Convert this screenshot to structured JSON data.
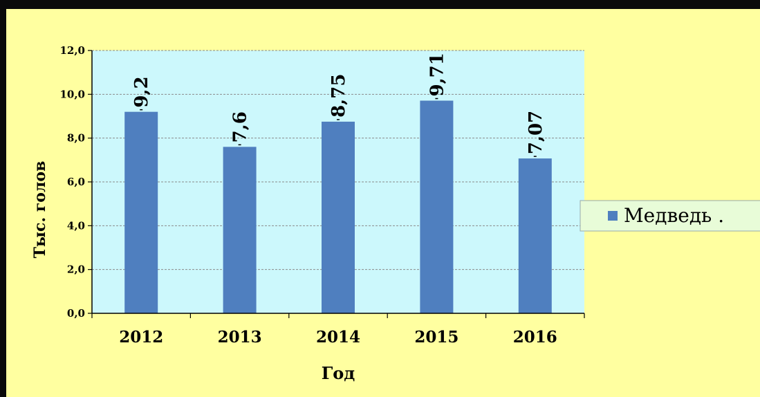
{
  "chart_data": {
    "type": "bar",
    "categories": [
      "2012",
      "2013",
      "2014",
      "2015",
      "2016"
    ],
    "series": [
      {
        "name": "Медведь .",
        "values": [
          9.2,
          7.6,
          8.75,
          9.71,
          7.07
        ],
        "color": "#4f7fbf"
      }
    ],
    "data_labels": [
      "9,2",
      "7,6",
      "8,75",
      "9,71",
      "7,07"
    ],
    "ylim": [
      0,
      12
    ],
    "yticks": [
      0,
      2,
      4,
      6,
      8,
      10,
      12
    ],
    "ytick_labels": [
      "0,0",
      "2,0",
      "4,0",
      "6,0",
      "8,0",
      "10,0",
      "12,0"
    ],
    "xlabel": "Год",
    "ylabel": "Тыс. голов",
    "grid": true,
    "legend_position": "right",
    "colors": {
      "page_background": "#ffffa0",
      "plot_background": "#ccf8fc",
      "legend_background": "#e8fcd8"
    }
  }
}
